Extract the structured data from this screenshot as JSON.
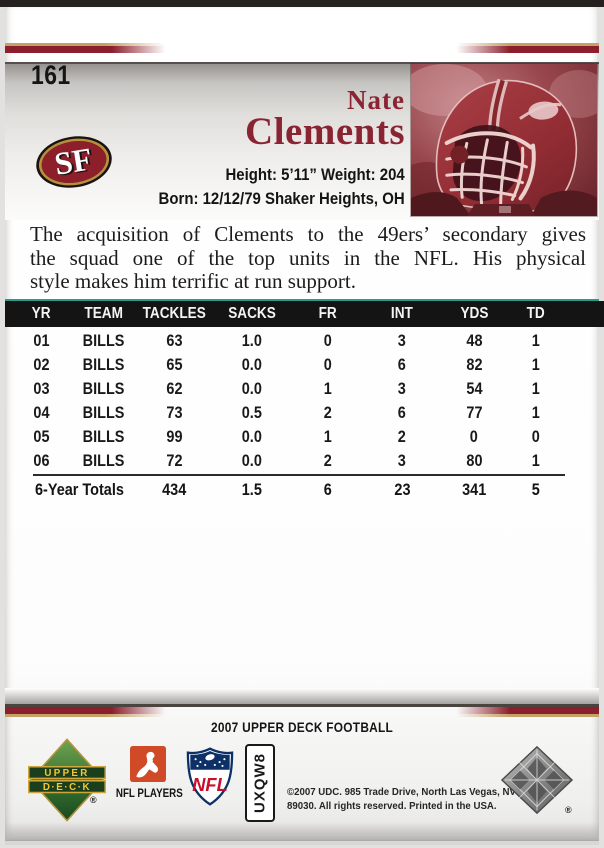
{
  "card": {
    "number": "161",
    "player_first_name": "Nate",
    "player_last_name": "Clements",
    "team_logo_text": "SF",
    "bio": {
      "height_weight": "Height: 5’11” Weight: 204",
      "born": "Born: 12/12/79 Shaker Heights, OH"
    },
    "description_lines": [
      "The acquisition of Clements to the 49ers’ secondary gives",
      "the squad one of the top units in the NFL. His physical",
      "style makes him terrific at run support."
    ]
  },
  "stats_table": {
    "columns": [
      "YR",
      "TEAM",
      "TACKLES",
      "SACKS",
      "FR",
      "INT",
      "YDS",
      "TD"
    ],
    "rows": [
      [
        "01",
        "BILLS",
        "63",
        "1.0",
        "0",
        "3",
        "48",
        "1"
      ],
      [
        "02",
        "BILLS",
        "65",
        "0.0",
        "0",
        "6",
        "82",
        "1"
      ],
      [
        "03",
        "BILLS",
        "62",
        "0.0",
        "1",
        "3",
        "54",
        "1"
      ],
      [
        "04",
        "BILLS",
        "73",
        "0.5",
        "2",
        "6",
        "77",
        "1"
      ],
      [
        "05",
        "BILLS",
        "99",
        "0.0",
        "1",
        "2",
        "0",
        "0"
      ],
      [
        "06",
        "BILLS",
        "72",
        "0.0",
        "2",
        "3",
        "80",
        "1"
      ]
    ],
    "totals_label": "6-Year Totals",
    "totals": [
      "434",
      "1.5",
      "6",
      "23",
      "341",
      "5"
    ]
  },
  "footer": {
    "set_name": "2007 UPPER DECK FOOTBALL",
    "upper_deck_line1": "UPPER",
    "upper_deck_line2": "D·E·C·K",
    "nfl_players_label": "NFL PLAYERS",
    "nfl_label": "NFL",
    "card_code": "UXQW8",
    "copyright_line1": "©2007 UDC. 985 Trade Drive, North Las Vegas, NV",
    "copyright_line2": "89030. All rights reserved. Printed in the USA.",
    "registered_symbol": "®"
  },
  "colors": {
    "stripe_maroon": "#8d1f2d",
    "stripe_tan": "#c2a267",
    "name_maroon": "#8a2433",
    "teal_accent": "#2a9a8d",
    "table_header_bg": "#141414",
    "photo_tint": "#99474e"
  }
}
